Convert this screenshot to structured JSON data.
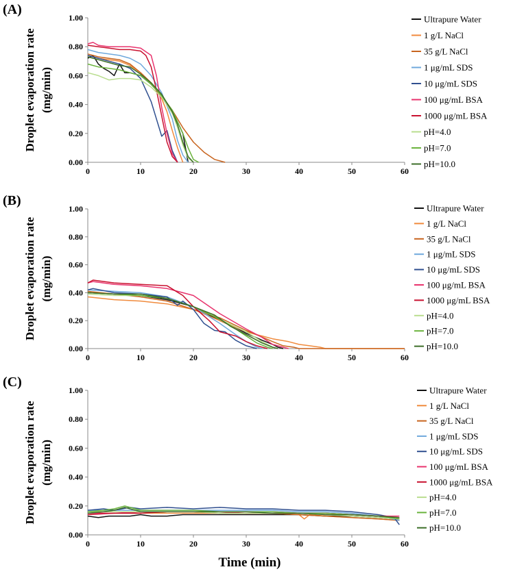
{
  "figure": {
    "xlabel": "Time (min)"
  },
  "colors": {
    "Ultrapure Water": "#111111",
    "1 g/L NaCl": "#f08a3c",
    "35 g/L NaCl": "#c8641e",
    "1 μg/mL SDS": "#6fa8dc",
    "10 μg/mL SDS": "#2f4f8f",
    "100 μg/mL BSA": "#e8336d",
    "1000 μg/mL BSA": "#c8102e",
    "pH=4.0": "#b9dd8e",
    "pH=7.0": "#6ab33c",
    "pH=10.0": "#3c6e28"
  },
  "chart_data": [
    {
      "panel": "(A)",
      "type": "line",
      "ylabel": "Droplet evaporation rate (mg/min)",
      "xlabel": "",
      "xlim": [
        0,
        60
      ],
      "ylim": [
        0,
        1
      ],
      "xticks": [
        "0",
        "10",
        "20",
        "30",
        "40",
        "50",
        "60"
      ],
      "yticks": [
        "0.00",
        "0.20",
        "0.40",
        "0.60",
        "0.80",
        "1.00"
      ],
      "series": [
        {
          "name": "Ultrapure Water",
          "x": [
            0,
            1,
            2,
            3,
            4,
            5,
            6,
            7,
            8,
            10,
            12,
            14,
            16,
            17,
            18,
            19
          ],
          "y": [
            0.72,
            0.74,
            0.68,
            0.65,
            0.63,
            0.6,
            0.68,
            0.62,
            0.62,
            0.6,
            0.54,
            0.46,
            0.34,
            0.28,
            0.2,
            0
          ]
        },
        {
          "name": "1 g/L NaCl",
          "x": [
            0,
            2,
            4,
            6,
            8,
            10,
            12,
            14,
            15,
            16,
            17,
            18
          ],
          "y": [
            0.74,
            0.72,
            0.71,
            0.7,
            0.67,
            0.62,
            0.55,
            0.44,
            0.35,
            0.22,
            0.1,
            0
          ]
        },
        {
          "name": "35 g/L NaCl",
          "x": [
            0,
            2,
            4,
            6,
            8,
            10,
            12,
            14,
            16,
            18,
            20,
            22,
            24,
            25,
            26
          ],
          "y": [
            0.75,
            0.73,
            0.72,
            0.71,
            0.68,
            0.62,
            0.55,
            0.46,
            0.36,
            0.24,
            0.14,
            0.07,
            0.02,
            0.01,
            0
          ]
        },
        {
          "name": "1 μg/mL SDS",
          "x": [
            0,
            2,
            4,
            6,
            8,
            10,
            12,
            14,
            16,
            17,
            18,
            19
          ],
          "y": [
            0.78,
            0.76,
            0.75,
            0.74,
            0.72,
            0.68,
            0.6,
            0.48,
            0.3,
            0.15,
            0.05,
            0
          ]
        },
        {
          "name": "10 μg/mL SDS",
          "x": [
            0,
            2,
            4,
            6,
            8,
            10,
            12,
            13,
            14,
            15,
            16,
            17
          ],
          "y": [
            0.74,
            0.72,
            0.7,
            0.68,
            0.65,
            0.58,
            0.42,
            0.3,
            0.18,
            0.22,
            0.08,
            0
          ]
        },
        {
          "name": "100 μg/mL BSA",
          "x": [
            0,
            1,
            2,
            4,
            6,
            8,
            10,
            12,
            13,
            14,
            15,
            16,
            17
          ],
          "y": [
            0.82,
            0.83,
            0.81,
            0.8,
            0.8,
            0.8,
            0.79,
            0.74,
            0.6,
            0.38,
            0.2,
            0.06,
            0
          ]
        },
        {
          "name": "1000 μg/mL BSA",
          "x": [
            0,
            2,
            4,
            6,
            8,
            10,
            11,
            12,
            13,
            14,
            15,
            16,
            17
          ],
          "y": [
            0.81,
            0.8,
            0.79,
            0.78,
            0.78,
            0.77,
            0.74,
            0.66,
            0.5,
            0.32,
            0.14,
            0.04,
            0
          ]
        },
        {
          "name": "pH=4.0",
          "x": [
            0,
            2,
            4,
            6,
            8,
            10,
            12,
            14,
            16,
            17,
            18,
            19,
            20
          ],
          "y": [
            0.62,
            0.6,
            0.57,
            0.58,
            0.58,
            0.57,
            0.52,
            0.45,
            0.34,
            0.24,
            0.12,
            0.03,
            0
          ]
        },
        {
          "name": "pH=7.0",
          "x": [
            0,
            2,
            4,
            6,
            8,
            10,
            12,
            14,
            16,
            18,
            19,
            20,
            21
          ],
          "y": [
            0.68,
            0.66,
            0.65,
            0.64,
            0.62,
            0.6,
            0.54,
            0.46,
            0.36,
            0.2,
            0.1,
            0.02,
            0
          ]
        },
        {
          "name": "pH=10.0",
          "x": [
            0,
            2,
            4,
            6,
            8,
            10,
            12,
            14,
            16,
            17,
            18,
            19,
            20
          ],
          "y": [
            0.73,
            0.71,
            0.69,
            0.67,
            0.66,
            0.61,
            0.55,
            0.47,
            0.35,
            0.26,
            0.14,
            0.04,
            0
          ]
        }
      ]
    },
    {
      "panel": "(B)",
      "type": "line",
      "ylabel": "Droplet evaporation rate (mg/min)",
      "xlabel": "",
      "xlim": [
        0,
        60
      ],
      "ylim": [
        0,
        1
      ],
      "xticks": [
        "0",
        "10",
        "20",
        "30",
        "40",
        "50",
        "60"
      ],
      "yticks": [
        "0.00",
        "0.20",
        "0.40",
        "0.60",
        "0.80",
        "1.00"
      ],
      "series": [
        {
          "name": "Ultrapure Water",
          "x": [
            0,
            5,
            10,
            15,
            20,
            25,
            28,
            30,
            33,
            35,
            36,
            37
          ],
          "y": [
            0.4,
            0.39,
            0.38,
            0.35,
            0.3,
            0.2,
            0.15,
            0.11,
            0.06,
            0.03,
            0.01,
            0
          ]
        },
        {
          "name": "1 g/L NaCl",
          "x": [
            0,
            5,
            10,
            15,
            20,
            25,
            30,
            35,
            38,
            40,
            42,
            44,
            45,
            50,
            60
          ],
          "y": [
            0.37,
            0.35,
            0.34,
            0.32,
            0.28,
            0.2,
            0.12,
            0.07,
            0.05,
            0.03,
            0.02,
            0.01,
            0,
            0,
            0
          ]
        },
        {
          "name": "35 g/L NaCl",
          "x": [
            0,
            5,
            10,
            15,
            20,
            25,
            30,
            35,
            37,
            39,
            40,
            50,
            60
          ],
          "y": [
            0.41,
            0.39,
            0.37,
            0.34,
            0.28,
            0.22,
            0.13,
            0.05,
            0.02,
            0.01,
            0,
            0,
            0
          ]
        },
        {
          "name": "1 μg/mL SDS",
          "x": [
            0,
            5,
            10,
            15,
            20,
            25,
            28,
            30,
            32,
            33
          ],
          "y": [
            0.42,
            0.41,
            0.4,
            0.37,
            0.3,
            0.18,
            0.1,
            0.05,
            0.01,
            0
          ]
        },
        {
          "name": "10 μg/mL SDS",
          "x": [
            0,
            1,
            5,
            10,
            15,
            17,
            18,
            20,
            22,
            24,
            26,
            28,
            30,
            32
          ],
          "y": [
            0.42,
            0.43,
            0.4,
            0.39,
            0.37,
            0.31,
            0.34,
            0.28,
            0.18,
            0.13,
            0.12,
            0.06,
            0.02,
            0
          ]
        },
        {
          "name": "100 μg/mL BSA",
          "x": [
            0,
            1,
            5,
            10,
            15,
            20,
            25,
            30,
            33,
            35,
            37,
            38
          ],
          "y": [
            0.47,
            0.48,
            0.46,
            0.45,
            0.43,
            0.38,
            0.25,
            0.14,
            0.08,
            0.03,
            0.01,
            0
          ]
        },
        {
          "name": "1000 μg/mL BSA",
          "x": [
            0,
            1,
            5,
            10,
            15,
            18,
            20,
            23,
            25,
            28,
            30,
            32,
            34
          ],
          "y": [
            0.47,
            0.49,
            0.47,
            0.46,
            0.45,
            0.38,
            0.3,
            0.2,
            0.12,
            0.09,
            0.05,
            0.02,
            0
          ]
        },
        {
          "name": "pH=4.0",
          "x": [
            0,
            5,
            10,
            15,
            20,
            25,
            30,
            33,
            35,
            36
          ],
          "y": [
            0.39,
            0.38,
            0.38,
            0.36,
            0.3,
            0.21,
            0.12,
            0.05,
            0.01,
            0
          ]
        },
        {
          "name": "pH=7.0",
          "x": [
            0,
            5,
            10,
            15,
            20,
            25,
            28,
            30,
            32,
            34,
            35
          ],
          "y": [
            0.4,
            0.39,
            0.38,
            0.36,
            0.3,
            0.21,
            0.14,
            0.09,
            0.04,
            0.01,
            0
          ]
        },
        {
          "name": "pH=10.0",
          "x": [
            0,
            5,
            10,
            15,
            20,
            24,
            27,
            30,
            33,
            35,
            36
          ],
          "y": [
            0.4,
            0.39,
            0.39,
            0.36,
            0.3,
            0.24,
            0.16,
            0.1,
            0.04,
            0.01,
            0
          ]
        }
      ]
    },
    {
      "panel": "(C)",
      "type": "line",
      "ylabel": "Droplet evaporation rate (mg/min)",
      "xlabel": "Time (min)",
      "xlim": [
        0,
        60
      ],
      "ylim": [
        0,
        1
      ],
      "xticks": [
        "0",
        "10",
        "20",
        "30",
        "40",
        "50",
        "60"
      ],
      "yticks": [
        "0.00",
        "0.20",
        "0.40",
        "0.60",
        "0.80",
        "1.00"
      ],
      "series": [
        {
          "name": "Ultrapure Water",
          "x": [
            0,
            2,
            4,
            6,
            8,
            10,
            12,
            15,
            18,
            20,
            25,
            30,
            35,
            40,
            45,
            50,
            55,
            59
          ],
          "y": [
            0.13,
            0.12,
            0.13,
            0.13,
            0.13,
            0.14,
            0.13,
            0.13,
            0.14,
            0.14,
            0.14,
            0.14,
            0.14,
            0.14,
            0.13,
            0.13,
            0.12,
            0.11
          ]
        },
        {
          "name": "1 g/L NaCl",
          "x": [
            0,
            5,
            10,
            15,
            20,
            25,
            30,
            35,
            40,
            41,
            42,
            45,
            50,
            55,
            59
          ],
          "y": [
            0.15,
            0.15,
            0.15,
            0.15,
            0.15,
            0.15,
            0.15,
            0.15,
            0.14,
            0.11,
            0.14,
            0.13,
            0.12,
            0.11,
            0.1
          ]
        },
        {
          "name": "35 g/L NaCl",
          "x": [
            0,
            5,
            10,
            15,
            20,
            25,
            30,
            35,
            40,
            45,
            50,
            55,
            59
          ],
          "y": [
            0.15,
            0.15,
            0.15,
            0.16,
            0.16,
            0.15,
            0.15,
            0.15,
            0.14,
            0.13,
            0.12,
            0.11,
            0.1
          ]
        },
        {
          "name": "1 μg/mL SDS",
          "x": [
            0,
            5,
            10,
            15,
            20,
            25,
            30,
            35,
            40,
            45,
            50,
            55,
            59
          ],
          "y": [
            0.17,
            0.17,
            0.17,
            0.17,
            0.17,
            0.17,
            0.17,
            0.17,
            0.16,
            0.16,
            0.15,
            0.13,
            0.1
          ]
        },
        {
          "name": "10 μg/mL SDS",
          "x": [
            0,
            3,
            5,
            8,
            10,
            15,
            20,
            25,
            30,
            35,
            40,
            45,
            50,
            55,
            58,
            59
          ],
          "y": [
            0.17,
            0.18,
            0.17,
            0.19,
            0.18,
            0.19,
            0.18,
            0.19,
            0.18,
            0.18,
            0.17,
            0.17,
            0.16,
            0.14,
            0.12,
            0.07
          ]
        },
        {
          "name": "100 μg/mL BSA",
          "x": [
            0,
            5,
            10,
            15,
            20,
            25,
            30,
            35,
            40,
            45,
            50,
            55,
            59
          ],
          "y": [
            0.15,
            0.15,
            0.16,
            0.16,
            0.16,
            0.16,
            0.16,
            0.16,
            0.15,
            0.15,
            0.14,
            0.13,
            0.13
          ]
        },
        {
          "name": "1000 μg/mL BSA",
          "x": [
            0,
            5,
            10,
            15,
            20,
            25,
            30,
            35,
            40,
            45,
            50,
            55,
            59
          ],
          "y": [
            0.14,
            0.15,
            0.15,
            0.16,
            0.16,
            0.16,
            0.15,
            0.15,
            0.15,
            0.15,
            0.14,
            0.13,
            0.12
          ]
        },
        {
          "name": "pH=4.0",
          "x": [
            0,
            5,
            10,
            15,
            20,
            25,
            30,
            35,
            40,
            45,
            50,
            55,
            59
          ],
          "y": [
            0.16,
            0.16,
            0.16,
            0.16,
            0.16,
            0.15,
            0.15,
            0.15,
            0.15,
            0.14,
            0.13,
            0.12,
            0.11
          ]
        },
        {
          "name": "pH=7.0",
          "x": [
            0,
            3,
            5,
            7,
            8,
            10,
            15,
            20,
            25,
            30,
            35,
            40,
            45,
            50,
            55,
            59
          ],
          "y": [
            0.16,
            0.17,
            0.18,
            0.2,
            0.19,
            0.17,
            0.17,
            0.17,
            0.16,
            0.16,
            0.16,
            0.15,
            0.15,
            0.14,
            0.13,
            0.11
          ]
        },
        {
          "name": "pH=10.0",
          "x": [
            0,
            3,
            5,
            7,
            8,
            10,
            15,
            20,
            25,
            30,
            35,
            40,
            45,
            50,
            55,
            59
          ],
          "y": [
            0.15,
            0.16,
            0.17,
            0.19,
            0.18,
            0.16,
            0.16,
            0.16,
            0.16,
            0.16,
            0.15,
            0.15,
            0.14,
            0.14,
            0.13,
            0.12
          ]
        }
      ]
    }
  ]
}
